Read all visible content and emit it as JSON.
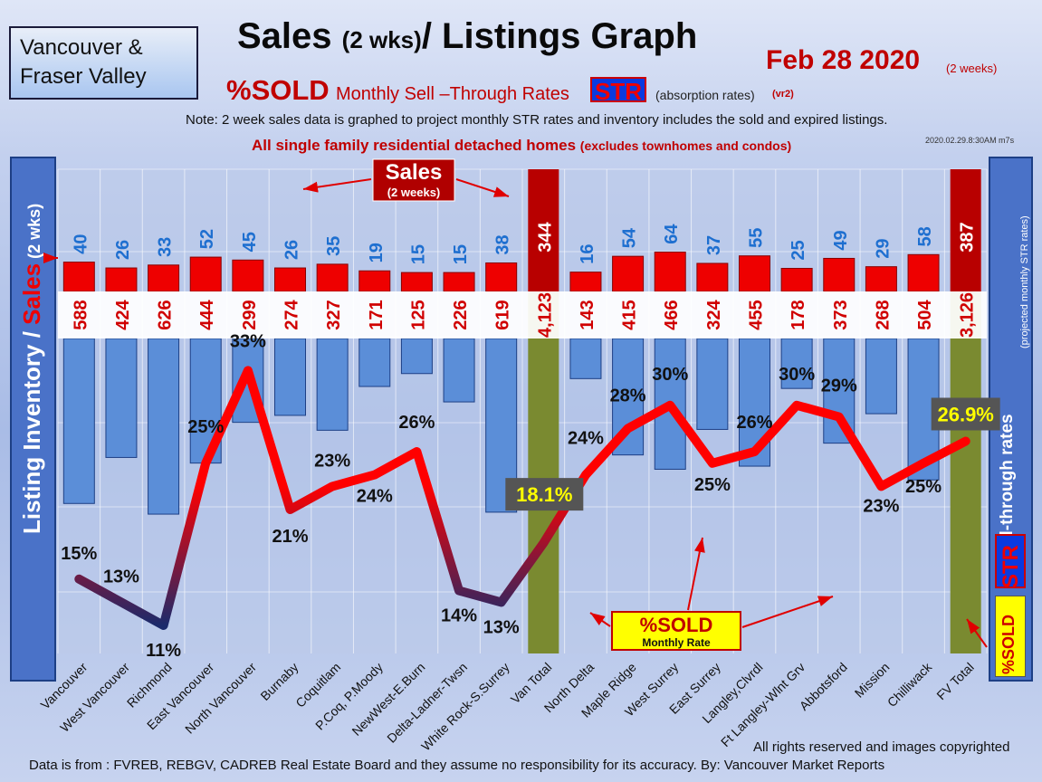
{
  "header": {
    "region": [
      "Vancouver &",
      "Fraser Valley"
    ],
    "title_main": "Sales ",
    "title_small": "(2 wks)",
    "title_end": "/ Listings Graph",
    "date": "Feb 28 2020",
    "date_sub": "(2 weeks)",
    "sold_label": "%SOLD",
    "sub_mid": "Monthly Sell –Through Rates",
    "str": "STR",
    "absorb": "(absorption rates)",
    "vr2": "(vr2)",
    "note": "Note: 2 week sales data is graphed to project monthly STR rates and inventory includes the sold and expired listings.",
    "note2": "All single family residential detached homes ",
    "note2_small": "(excludes townhomes and condos)",
    "stamp": "2020.02.29.8:30AM m7s"
  },
  "side": {
    "left_label_1": "Listing Inventory",
    "left_label_2": " / ",
    "left_label_3": "Sales",
    "left_label_4": " (2  wks)",
    "right_label": "Sell-through rates",
    "right_small": "(projected monthly STR rates)",
    "str_vert": "STR",
    "sold_vert": "%SOLD"
  },
  "callouts": {
    "sales_title": "Sales",
    "sales_sub": "(2 weeks)",
    "sold_title": "%SOLD",
    "sold_sub": "Monthly Rate"
  },
  "footer": {
    "rights": "All rights reserved and  images copyrighted",
    "source": "Data is from : FVREB, REBGV, CADREB Real Estate Board and they assume no responsibility for its accuracy. By: Vancouver Market Reports"
  },
  "colors": {
    "sales": "#ee0000",
    "inventory": "#5b8ed8",
    "total_bar": "#7a8a30",
    "total_sales": "#b80000",
    "line_hi": "#ff0000",
    "line_lo": "#1b2a6b"
  },
  "chart_data": {
    "type": "bar",
    "categories": [
      "Vancouver",
      "West Vancouver",
      "Richmond",
      "East Vancouver",
      "North Vancouver",
      "Burnaby",
      "Coquitlam",
      "P.Coq, P.Moody",
      "NewWest-E.Burn",
      "Delta-Ladner-Twsn",
      "White Rock-S.Surrey",
      "Van Total",
      "North Delta",
      "Maple Ridge",
      "West Surrey",
      "East Surrey",
      "Langley,Clvrdl",
      "Ft Langley-Wlnt Grv",
      "Abbotsford",
      "Mission",
      "Chilliwack",
      "FV Total"
    ],
    "sales_labels": [
      "40",
      "26",
      "33",
      "52",
      "45",
      "26",
      "35",
      "19",
      "15",
      "15",
      "38",
      "344",
      "16",
      "54",
      "64",
      "37",
      "55",
      "25",
      "49",
      "29",
      "58",
      "387"
    ],
    "sales": [
      40,
      26,
      33,
      52,
      45,
      26,
      35,
      19,
      15,
      15,
      38,
      344,
      16,
      54,
      64,
      37,
      55,
      25,
      49,
      29,
      58,
      387
    ],
    "inventory_labels": [
      "588",
      "424",
      "626",
      "444",
      "299",
      "274",
      "327",
      "171",
      "125",
      "226",
      "619",
      "4,123",
      "143",
      "415",
      "466",
      "324",
      "455",
      "178",
      "373",
      "268",
      "504",
      "3,126"
    ],
    "inventory": [
      588,
      424,
      626,
      444,
      299,
      274,
      327,
      171,
      125,
      226,
      619,
      4123,
      143,
      415,
      466,
      324,
      455,
      178,
      373,
      268,
      504,
      3126
    ],
    "str_labels": [
      "15%",
      "13%",
      "11%",
      "25%",
      "33%",
      "21%",
      "23%",
      "24%",
      "26%",
      "14%",
      "13%",
      "18.1%",
      "24%",
      "28%",
      "30%",
      "25%",
      "26%",
      "30%",
      "29%",
      "23%",
      "25%",
      "26.9%"
    ],
    "str_pct": [
      15,
      13,
      11,
      25,
      33,
      21,
      23,
      24,
      26,
      14,
      13,
      18.1,
      24,
      28,
      30,
      25,
      26,
      30,
      29,
      23,
      25,
      26.9
    ],
    "is_total": [
      false,
      false,
      false,
      false,
      false,
      false,
      false,
      false,
      false,
      false,
      false,
      true,
      false,
      false,
      false,
      false,
      false,
      false,
      false,
      false,
      false,
      true
    ]
  }
}
